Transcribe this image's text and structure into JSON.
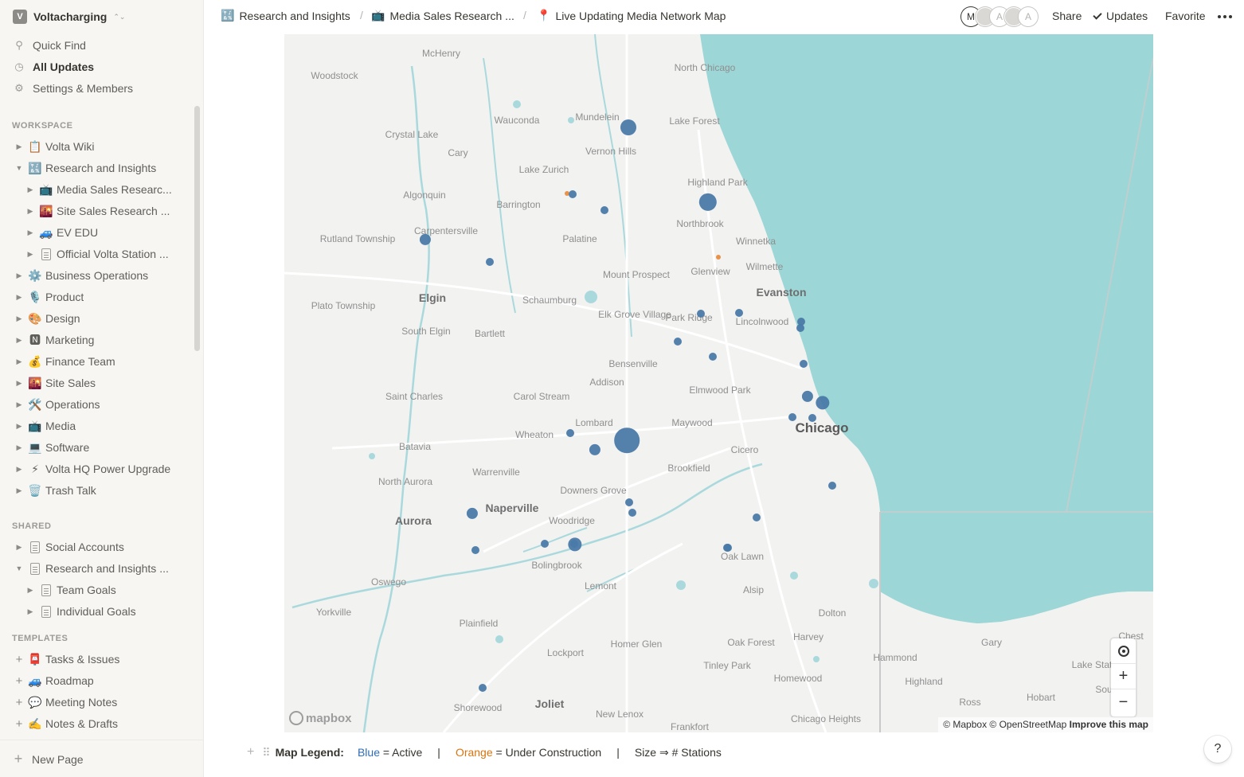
{
  "workspace": {
    "logo": "V",
    "name": "Voltacharging"
  },
  "sidebar_top": [
    {
      "icon": "search-icon",
      "label": "Quick Find"
    },
    {
      "icon": "clock-icon",
      "label": "All Updates"
    },
    {
      "icon": "gear-icon",
      "label": "Settings & Members"
    }
  ],
  "sections": {
    "workspace": "WORKSPACE",
    "shared": "SHARED",
    "templates": "TEMPLATES"
  },
  "workspace_pages": [
    {
      "emoji": "📋",
      "label": "Volta Wiki",
      "expanded": false
    },
    {
      "emoji": "🔣",
      "label": "Research and Insights",
      "expanded": true
    },
    {
      "emoji": "📺",
      "label": "Media Sales Researc...",
      "child": true
    },
    {
      "emoji": "🌇",
      "label": "Site Sales Research ...",
      "child": true
    },
    {
      "emoji": "🚙",
      "label": "EV EDU",
      "child": true
    },
    {
      "emoji": "doc",
      "label": "Official Volta Station ...",
      "child": true
    },
    {
      "emoji": "⚙️",
      "label": "Business Operations"
    },
    {
      "emoji": "🎙️",
      "label": "Product"
    },
    {
      "emoji": "🎨",
      "label": "Design"
    },
    {
      "emoji": "🅽",
      "label": "Marketing"
    },
    {
      "emoji": "💰",
      "label": "Finance Team"
    },
    {
      "emoji": "🌇",
      "label": "Site Sales"
    },
    {
      "emoji": "🛠️",
      "label": "Operations"
    },
    {
      "emoji": "📺",
      "label": "Media"
    },
    {
      "emoji": "💻",
      "label": "Software"
    },
    {
      "emoji": "⚡",
      "label": "Volta HQ Power Upgrade"
    },
    {
      "emoji": "🗑️",
      "label": "Trash Talk"
    }
  ],
  "shared_pages": [
    {
      "emoji": "doc",
      "label": "Social Accounts"
    },
    {
      "emoji": "doc",
      "label": "Research and Insights ...",
      "expanded": true
    },
    {
      "emoji": "doc",
      "label": "Team Goals",
      "child": true
    },
    {
      "emoji": "doc",
      "label": "Individual Goals",
      "child": true
    }
  ],
  "templates": [
    {
      "emoji": "📮",
      "label": "Tasks & Issues"
    },
    {
      "emoji": "🚙",
      "label": "Roadmap"
    },
    {
      "emoji": "💬",
      "label": "Meeting Notes"
    },
    {
      "emoji": "✍️",
      "label": "Notes & Drafts"
    }
  ],
  "new_page": "New Page",
  "breadcrumbs": [
    {
      "emoji": "🔣",
      "label": "Research and Insights"
    },
    {
      "emoji": "📺",
      "label": "Media Sales Research ..."
    },
    {
      "emoji": "📍",
      "label": "Live Updating Media Network Map"
    }
  ],
  "topbar": {
    "avatars": [
      "M",
      "",
      "A",
      "",
      "A"
    ],
    "share": "Share",
    "updates": "Updates",
    "favorite": "Favorite"
  },
  "map": {
    "colors": {
      "water": "#9dd6d6",
      "land": "#f2f2f1",
      "active": "#4a7aa8",
      "construction": "#e8924a"
    },
    "places": [
      "McHenry",
      "North Chicago",
      "Woodstock",
      "Mundelein",
      "Lake Forest",
      "Crystal Lake",
      "Wauconda",
      "Vernon Hills",
      "Cary",
      "Lake Zurich",
      "Highland Park",
      "Algonquin",
      "Barrington",
      "Northbrook",
      "Carpentersville",
      "Palatine",
      "Winnetka",
      "Rutland Township",
      "Glenview",
      "Wilmette",
      "Mount Prospect",
      "Evanston",
      "Elgin",
      "Schaumburg",
      "Plato Township",
      "Elk Grove Village",
      "Park Ridge",
      "Lincolnwood",
      "South Elgin",
      "Bartlett",
      "Bensenville",
      "Addison",
      "Elmwood Park",
      "Saint Charles",
      "Carol Stream",
      "Lombard",
      "Maywood",
      "Chicago",
      "Wheaton",
      "Batavia",
      "Cicero",
      "Warrenville",
      "Brookfield",
      "North Aurora",
      "Downers Grove",
      "Naperville",
      "Aurora",
      "Woodridge",
      "Oak Lawn",
      "Bolingbrook",
      "Oswego",
      "Lemont",
      "Alsip",
      "Yorkville",
      "Dolton",
      "Plainfield",
      "Harvey",
      "Homer Glen",
      "Oak Forest",
      "Gary",
      "Chest",
      "Lockport",
      "Hammond",
      "Lake Station",
      "Tinley Park",
      "Highland",
      "Homewood",
      "South",
      "Shorewood",
      "Ross",
      "Hobart",
      "Joliet",
      "New Lenox",
      "Chicago Heights",
      "Frankfort"
    ],
    "markers": [
      {
        "status": "Active",
        "stations": 4
      },
      {
        "status": "Active",
        "stations": 5
      },
      {
        "status": "Under Construction",
        "stations": 1
      },
      {
        "status": "Active",
        "stations": 1
      },
      {
        "status": "Active",
        "stations": 1
      },
      {
        "status": "Active",
        "stations": 2
      },
      {
        "status": "Active",
        "stations": 1
      },
      {
        "status": "Under Construction",
        "stations": 1
      },
      {
        "status": "Active",
        "stations": 1
      },
      {
        "status": "Active",
        "stations": 1
      },
      {
        "status": "Active",
        "stations": 1
      },
      {
        "status": "Active",
        "stations": 1
      },
      {
        "status": "Active",
        "stations": 1
      },
      {
        "status": "Active",
        "stations": 1
      },
      {
        "status": "Active",
        "stations": 1
      },
      {
        "status": "Active",
        "stations": 3
      },
      {
        "status": "Active",
        "stations": 2
      },
      {
        "status": "Active",
        "stations": 1
      },
      {
        "status": "Active",
        "stations": 1
      },
      {
        "status": "Active",
        "stations": 10
      },
      {
        "status": "Active",
        "stations": 2
      },
      {
        "status": "Active",
        "stations": 1
      },
      {
        "status": "Active",
        "stations": 2
      },
      {
        "status": "Active",
        "stations": 1
      },
      {
        "status": "Active",
        "stations": 1
      },
      {
        "status": "Active",
        "stations": 1
      },
      {
        "status": "Active",
        "stations": 1
      },
      {
        "status": "Active",
        "stations": 1
      },
      {
        "status": "Active",
        "stations": 1
      },
      {
        "status": "Active",
        "stations": 3
      },
      {
        "status": "Active",
        "stations": 1
      },
      {
        "status": "Active",
        "stations": 1
      },
      {
        "status": "Active",
        "stations": 1
      },
      {
        "status": "Active",
        "stations": 1
      }
    ],
    "logo": "mapbox",
    "attribution": "© Mapbox © OpenStreetMap",
    "improve": "Improve this map"
  },
  "legend": {
    "title": "Map Legend:",
    "blue": "Blue",
    "blue_rest": " = Active",
    "sep1": "|",
    "orange": "Orange",
    "orange_rest": " = Under Construction",
    "sep2": "|",
    "size": "Size ⇒ # Stations"
  },
  "help": "?"
}
